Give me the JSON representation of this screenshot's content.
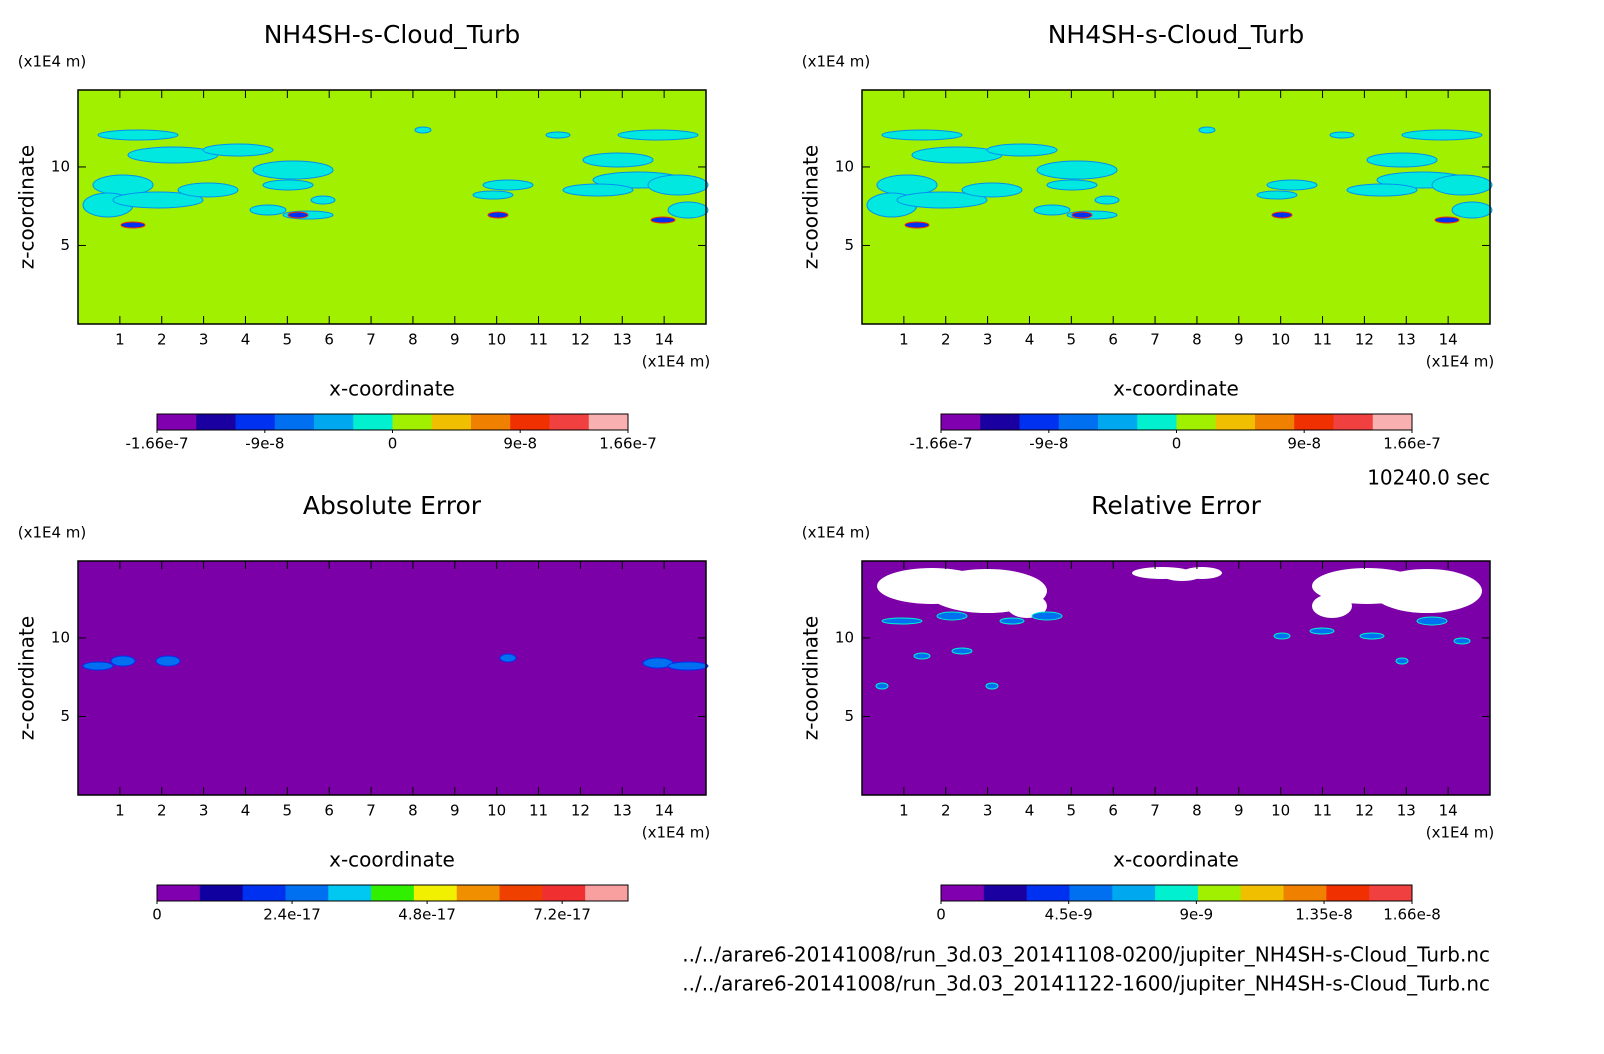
{
  "chart_data": [
    {
      "type": "contour",
      "title": "NH4SH-s-Cloud_Turb",
      "x_label": "x-coordinate",
      "y_label": "z-coordinate",
      "x_unit": "(x1E4 m)",
      "y_unit": "(x1E4 m)",
      "xlim": [
        0,
        15
      ],
      "xticks": [
        1,
        2,
        3,
        4,
        5,
        6,
        7,
        8,
        9,
        10,
        11,
        12,
        13,
        14
      ],
      "ylim": [
        0,
        14.9
      ],
      "yticks": [
        5,
        10
      ],
      "background": "#a0f000",
      "colorbar": {
        "lim": [
          -1.66e-07,
          1.66e-07
        ],
        "ticks": [
          -1.66e-07,
          -9e-08,
          0,
          9e-08,
          1.66e-07
        ],
        "colors": [
          "#8000b0",
          "#1a00a0",
          "#0030f0",
          "#0070f0",
          "#00a8f0",
          "#00f0d0",
          "#a0f000",
          "#f0c000",
          "#f08000",
          "#f03000",
          "#f04040",
          "#f8b0b0"
        ]
      }
    },
    {
      "type": "contour",
      "title": "NH4SH-s-Cloud_Turb",
      "x_label": "x-coordinate",
      "y_label": "z-coordinate",
      "x_unit": "(x1E4 m)",
      "y_unit": "(x1E4 m)",
      "xlim": [
        0,
        15
      ],
      "xticks": [
        1,
        2,
        3,
        4,
        5,
        6,
        7,
        8,
        9,
        10,
        11,
        12,
        13,
        14
      ],
      "ylim": [
        0,
        14.9
      ],
      "yticks": [
        5,
        10
      ],
      "background": "#a0f000",
      "colorbar": {
        "lim": [
          -1.66e-07,
          1.66e-07
        ],
        "ticks": [
          -1.66e-07,
          -9e-08,
          0,
          9e-08,
          1.66e-07
        ],
        "colors": [
          "#8000b0",
          "#1a00a0",
          "#0030f0",
          "#0070f0",
          "#00a8f0",
          "#00f0d0",
          "#a0f000",
          "#f0c000",
          "#f08000",
          "#f03000",
          "#f04040",
          "#f8b0b0"
        ]
      }
    },
    {
      "type": "contour",
      "title": "Absolute Error",
      "x_label": "x-coordinate",
      "y_label": "z-coordinate",
      "x_unit": "(x1E4 m)",
      "y_unit": "(x1E4 m)",
      "xlim": [
        0,
        15
      ],
      "xticks": [
        1,
        2,
        3,
        4,
        5,
        6,
        7,
        8,
        9,
        10,
        11,
        12,
        13,
        14
      ],
      "ylim": [
        0,
        14.9
      ],
      "yticks": [
        5,
        10
      ],
      "background": "#7b00a8",
      "colorbar": {
        "lim": [
          0,
          8.37e-17
        ],
        "ticks": [
          0,
          2.4e-17,
          4.8e-17,
          7.2e-17
        ],
        "colors": [
          "#8000b0",
          "#1000a0",
          "#0030f0",
          "#0070f0",
          "#00c8f0",
          "#30f000",
          "#f0f000",
          "#f09000",
          "#f04000",
          "#f03030",
          "#f8a0a0"
        ]
      }
    },
    {
      "type": "contour",
      "title": "Relative Error",
      "x_label": "x-coordinate",
      "y_label": "z-coordinate",
      "x_unit": "(x1E4 m)",
      "y_unit": "(x1E4 m)",
      "xlim": [
        0,
        15
      ],
      "xticks": [
        1,
        2,
        3,
        4,
        5,
        6,
        7,
        8,
        9,
        10,
        11,
        12,
        13,
        14
      ],
      "ylim": [
        0,
        14.9
      ],
      "yticks": [
        5,
        10
      ],
      "background": "#7b00a8",
      "colorbar": {
        "lim": [
          0,
          1.66e-08
        ],
        "ticks": [
          0,
          4.5e-09,
          9e-09,
          1.35e-08,
          1.66e-08
        ],
        "colors": [
          "#8000b0",
          "#1a00a0",
          "#0030f0",
          "#0070f0",
          "#00a8f0",
          "#00f0d0",
          "#a0f000",
          "#f0c000",
          "#f08000",
          "#f03000",
          "#f04040"
        ]
      }
    }
  ],
  "time_label": "10240.0 sec",
  "files": [
    "../../arare6-20141008/run_3d.03_20141108-0200/jupiter_NH4SH-s-Cloud_Turb.nc",
    "../../arare6-20141008/run_3d.03_20141122-1600/jupiter_NH4SH-s-Cloud_Turb.nc"
  ]
}
